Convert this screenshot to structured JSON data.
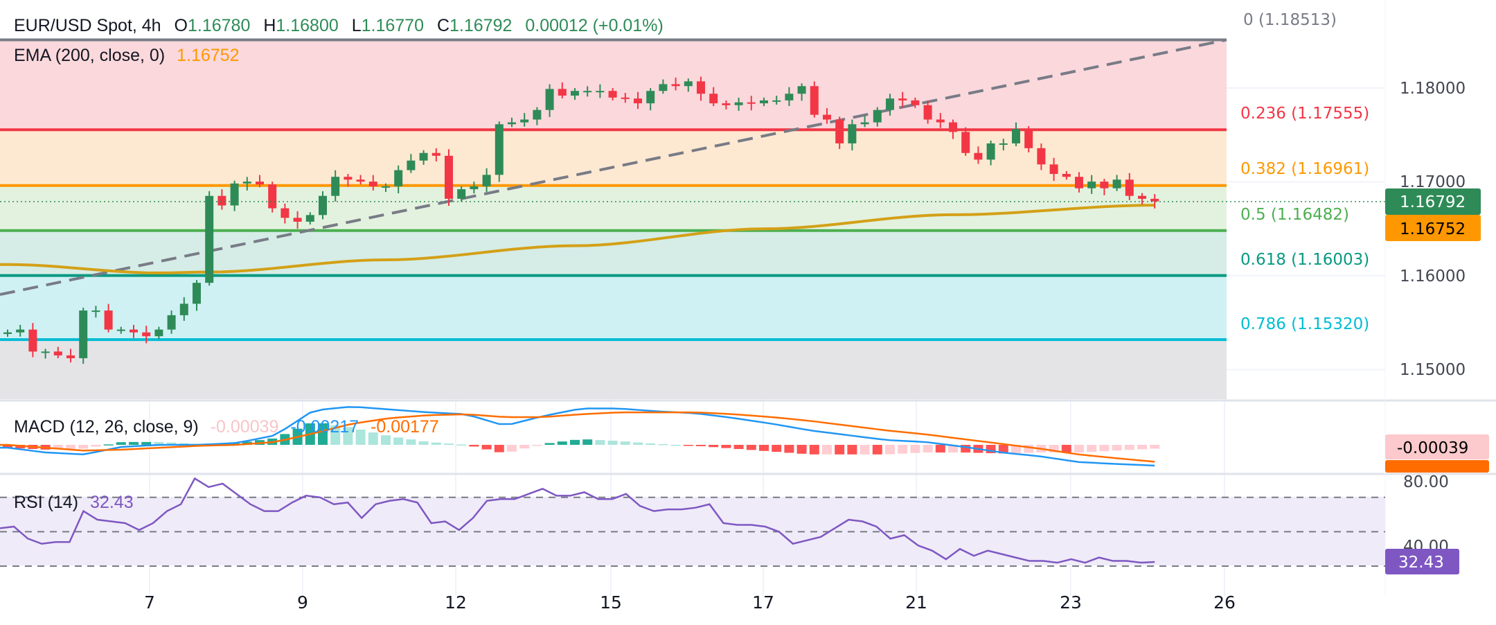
{
  "header": {
    "symbol": "EUR/USD Spot, 4h",
    "o_label": "O",
    "o": "1.16780",
    "h_label": "H",
    "h": "1.16800",
    "l_label": "L",
    "l": "1.16770",
    "c_label": "C",
    "c": "1.16792",
    "change": "0.00012 (+0.01%)"
  },
  "ema": {
    "label": "EMA (200, close, 0)",
    "value": "1.16752"
  },
  "macd": {
    "label": "MACD (12, 26, close, 9)",
    "hist": "-0.00039",
    "macd": "-0.00217",
    "signal": "-0.00177",
    "axis_box": "-0.00039"
  },
  "rsi": {
    "label": "RSI (14)",
    "value": "32.43",
    "axis_80": "80.00",
    "axis_40": "40.00"
  },
  "price_axis": {
    "ticks": [
      "1.18000",
      "1.17000",
      "1.16000",
      "1.15000"
    ],
    "last_price": "1.16792",
    "ema_price": "1.16752"
  },
  "fib_levels": [
    {
      "label": "0 (1.18513)",
      "level": 0,
      "price": 1.18513,
      "color": "#787b86",
      "fill": "#fad8dc"
    },
    {
      "label": "0.236 (1.17555)",
      "level": 0.236,
      "price": 1.17555,
      "color": "#f23645",
      "fill": "#fde9d2"
    },
    {
      "label": "0.382 (1.16961)",
      "level": 0.382,
      "price": 1.16961,
      "color": "#ff9800",
      "fill": "#e3f2de"
    },
    {
      "label": "0.5 (1.16482)",
      "level": 0.5,
      "price": 1.16482,
      "color": "#4caf50",
      "fill": "#d5ede6"
    },
    {
      "label": "0.618 (1.16003)",
      "level": 0.618,
      "price": 1.16003,
      "color": "#089981",
      "fill": "#cff1f4"
    },
    {
      "label": "0.786 (1.15320)",
      "level": 0.786,
      "price": 1.1532,
      "color": "#00bcd4",
      "fill": "#e4e4e7"
    }
  ],
  "x_axis": {
    "ticks": [
      "7",
      "9",
      "12",
      "15",
      "17",
      "21",
      "23",
      "26"
    ]
  },
  "colors": {
    "up": "#2e8b57",
    "down": "#f23645",
    "ema": "#d4a017",
    "macd": "#2196f3",
    "signal": "#ff6d00",
    "rsi": "#7e57c2",
    "trend": "#787b86"
  },
  "chart_data": {
    "type": "candlestick",
    "title": "EUR/USD Spot, 4h",
    "ylim": [
      1.147,
      1.1865
    ],
    "first_open": 1.1538,
    "closes": [
      1.15397,
      1.15427,
      1.15193,
      1.15193,
      1.15152,
      1.15122,
      1.1563,
      1.1563,
      1.15427,
      1.15427,
      1.15397,
      1.15356,
      1.15427,
      1.1558,
      1.15702,
      1.15925,
      1.16851,
      1.16749,
      1.16983,
      1.17003,
      1.16973,
      1.16719,
      1.16617,
      1.16576,
      1.16647,
      1.16851,
      1.17054,
      1.17024,
      1.17003,
      1.16953,
      1.16953,
      1.17125,
      1.17227,
      1.17308,
      1.17278,
      1.1682,
      1.16922,
      1.16953,
      1.17075,
      1.17614,
      1.17634,
      1.17664,
      1.17766,
      1.1799,
      1.17919,
      1.17969,
      1.17969,
      1.17969,
      1.17898,
      1.17888,
      1.17837,
      1.17969,
      1.18041,
      1.1802,
      1.18071,
      1.17939,
      1.17837,
      1.17817,
      1.17847,
      1.17837,
      1.17868,
      1.17868,
      1.17939,
      1.1802,
      1.17715,
      1.17664,
      1.1741,
      1.17614,
      1.17634,
      1.17766,
      1.17888,
      1.17868,
      1.17817,
      1.17664,
      1.17634,
      1.17532,
      1.17308,
      1.17237,
      1.1741,
      1.1741,
      1.17563,
      1.17359,
      1.17186,
      1.17085,
      1.17054,
      1.16932,
      1.17003,
      1.16932,
      1.17024,
      1.16851,
      1.1682,
      1.16792
    ],
    "ema_anchors": [
      [
        0,
        1.1612
      ],
      [
        12,
        1.1603
      ],
      [
        16,
        1.1604
      ],
      [
        30,
        1.1617
      ],
      [
        45,
        1.1632
      ],
      [
        60,
        1.165
      ],
      [
        75,
        1.1665
      ],
      [
        91,
        1.16752
      ]
    ],
    "trendline": {
      "start_price": 1.158,
      "end_price": 1.18513
    },
    "macd_line": [
      -0.0003,
      -0.0008,
      -0.001,
      -0.0002,
      0,
      0,
      0.0002,
      0.001,
      0.0036,
      0.004,
      0.0037,
      0.0034,
      0.0032,
      0.002,
      0.003,
      0.0038,
      0.0038,
      0.0035,
      0.0033,
      0.0028,
      0.0022,
      0.0015,
      0.001,
      0.0005,
      0.0003,
      -0.0002,
      -0.0008,
      -0.0012,
      -0.0018,
      -0.002,
      -0.00217
    ],
    "signal_line": [
      0,
      -0.0003,
      -0.0006,
      -0.0005,
      -0.0003,
      -0.0001,
      0,
      0.0003,
      0.0012,
      0.0022,
      0.0028,
      0.0031,
      0.0032,
      0.0029,
      0.0029,
      0.0032,
      0.0034,
      0.0034,
      0.0034,
      0.0032,
      0.0029,
      0.0025,
      0.002,
      0.0015,
      0.0011,
      0.0006,
      0.0001,
      -0.0004,
      -0.001,
      -0.0014,
      -0.00177
    ],
    "rsi": [
      52,
      53,
      46,
      43,
      44,
      44,
      62,
      57,
      56,
      55,
      51,
      55,
      62,
      66,
      81,
      76,
      78,
      72,
      66,
      62,
      62,
      67,
      71,
      70,
      66,
      67,
      58,
      66,
      68,
      69,
      67,
      55,
      56,
      51,
      58,
      68,
      69,
      69,
      72,
      75,
      71,
      71,
      73,
      69,
      69,
      72,
      65,
      62,
      63,
      63,
      64,
      66,
      55,
      54,
      54,
      53,
      50,
      43,
      45,
      47,
      52,
      57,
      56,
      53,
      46,
      48,
      42,
      39,
      34,
      40,
      36,
      39,
      37,
      35,
      33,
      33,
      32,
      34,
      32,
      35,
      33,
      33,
      32,
      32.43
    ],
    "rsi_levels": [
      70,
      50,
      30
    ]
  }
}
